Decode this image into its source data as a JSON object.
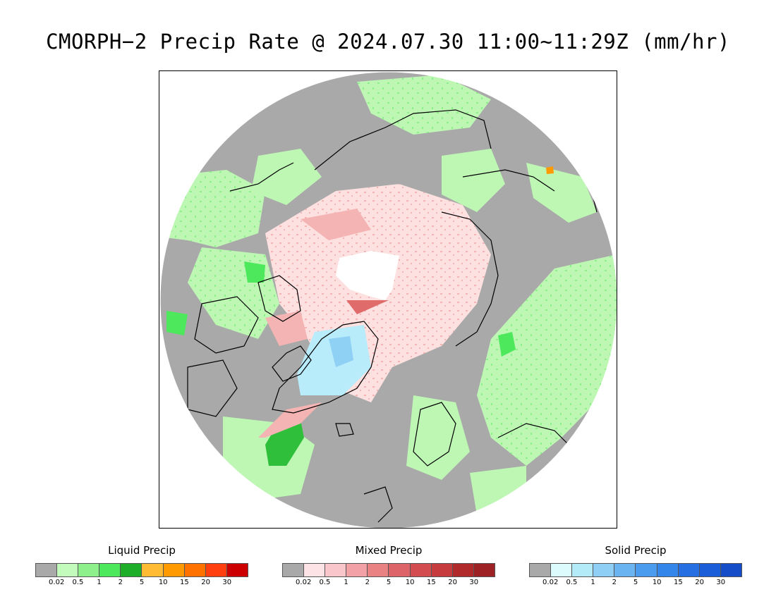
{
  "title": "CMORPH−2 Precip Rate @ 2024.07.30 11:00~11:29Z (mm/hr)",
  "map": {
    "projection": "north-polar-stereographic",
    "colors": {
      "background_no_precip": "#a9a9a9",
      "liquid_light": "#bef7b4",
      "liquid_mid": "#8ef08a",
      "liquid_heavy": "#2fbf3a",
      "mixed_light": "#fde0e0",
      "mixed_mid": "#f5b4b4",
      "mixed_heavy": "#e06b6b",
      "solid_light": "#b9ecfa",
      "solid_mid": "#8fd0f5",
      "no_data": "#ffffff",
      "coastline": "#000000"
    }
  },
  "legends": [
    {
      "title": "Liquid Precip",
      "colors": [
        "#a9a9a9",
        "#c3fbbd",
        "#8ef08a",
        "#4ee85c",
        "#1fae2a",
        "#ffbb33",
        "#ff9a00",
        "#ff7200",
        "#ff3f10",
        "#cc0000"
      ],
      "ticks": [
        "0.02",
        "0.5",
        "1",
        "2",
        "5",
        "10",
        "15",
        "20",
        "30"
      ]
    },
    {
      "title": "Mixed Precip",
      "colors": [
        "#a9a9a9",
        "#fde3e6",
        "#f8c6cb",
        "#f2a2a6",
        "#e98283",
        "#dd6468",
        "#d34c50",
        "#c53b3e",
        "#b02a2c",
        "#9c2225"
      ],
      "ticks": [
        "0.02",
        "0.5",
        "1",
        "2",
        "5",
        "10",
        "15",
        "20",
        "30"
      ]
    },
    {
      "title": "Solid Precip",
      "colors": [
        "#a9a9a9",
        "#dcfbfd",
        "#b3ecf8",
        "#8fcff5",
        "#6ab4f2",
        "#4b9bee",
        "#3586ea",
        "#266fe3",
        "#1b5cd8",
        "#154cc8"
      ],
      "ticks": [
        "0.02",
        "0.5",
        "1",
        "2",
        "5",
        "10",
        "15",
        "20",
        "30"
      ]
    }
  ]
}
